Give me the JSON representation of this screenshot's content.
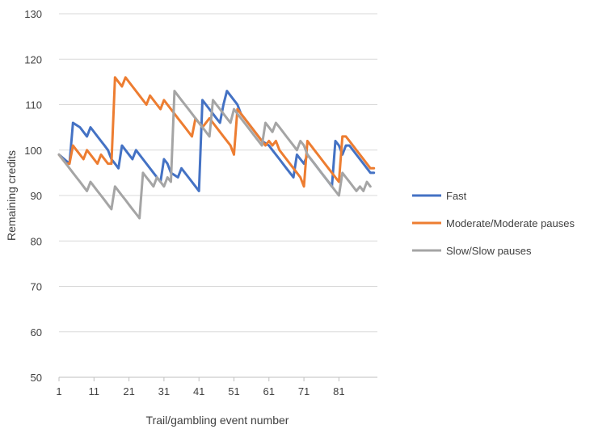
{
  "chart_data": {
    "type": "line",
    "xlabel": "Trail/gambling event number",
    "ylabel": "Remaining credits",
    "ylim": [
      50,
      130
    ],
    "yticks": [
      50,
      60,
      70,
      80,
      90,
      100,
      110,
      120,
      130
    ],
    "xlim": [
      1,
      92
    ],
    "xticks": [
      1,
      11,
      21,
      31,
      41,
      51,
      61,
      71,
      81
    ],
    "grid": "horizontal",
    "legend_position": "right",
    "series": [
      {
        "name": "Fast",
        "color": "#4472C4",
        "points": [
          [
            1,
            99
          ],
          [
            4,
            97
          ],
          [
            5,
            106
          ],
          [
            7,
            105
          ],
          [
            8,
            104
          ],
          [
            9,
            103
          ],
          [
            10,
            105
          ],
          [
            12,
            103
          ],
          [
            14,
            101
          ],
          [
            15,
            100
          ],
          [
            16,
            98
          ],
          [
            17,
            97
          ],
          [
            18,
            96
          ],
          [
            19,
            101
          ],
          [
            21,
            99
          ],
          [
            22,
            98
          ],
          [
            23,
            100
          ],
          [
            25,
            98
          ],
          [
            27,
            96
          ],
          [
            28,
            95
          ],
          [
            29,
            94
          ],
          [
            30,
            93
          ],
          [
            31,
            98
          ],
          [
            32,
            97
          ],
          [
            33,
            95
          ],
          [
            35,
            94
          ],
          [
            36,
            96
          ],
          [
            38,
            94
          ],
          [
            40,
            92
          ],
          [
            41,
            91
          ],
          [
            42,
            111
          ],
          [
            43,
            110
          ],
          [
            45,
            108
          ],
          [
            46,
            107
          ],
          [
            47,
            106
          ],
          [
            48,
            110
          ],
          [
            49,
            113
          ],
          [
            51,
            111
          ],
          [
            52,
            110
          ],
          [
            53,
            108
          ],
          [
            55,
            106
          ],
          [
            57,
            104
          ],
          [
            59,
            102
          ],
          [
            61,
            101
          ],
          [
            62,
            100
          ],
          [
            64,
            98
          ],
          [
            66,
            96
          ],
          [
            67,
            95
          ],
          [
            68,
            94
          ],
          [
            69,
            99
          ],
          [
            70,
            98
          ],
          [
            71,
            97
          ],
          [
            72,
            99
          ],
          [
            74,
            97
          ],
          [
            76,
            95
          ],
          [
            78,
            93
          ],
          [
            79,
            92
          ],
          [
            80,
            102
          ],
          [
            81,
            101
          ],
          [
            82,
            99
          ],
          [
            83,
            101
          ],
          [
            84,
            101
          ],
          [
            86,
            99
          ],
          [
            88,
            97
          ],
          [
            90,
            95
          ],
          [
            91,
            95
          ]
        ]
      },
      {
        "name": "Moderate/Moderate pauses",
        "color": "#ED7D31",
        "points": [
          [
            1,
            99
          ],
          [
            3,
            97
          ],
          [
            4,
            97
          ],
          [
            5,
            101
          ],
          [
            6,
            100
          ],
          [
            7,
            99
          ],
          [
            8,
            98
          ],
          [
            9,
            100
          ],
          [
            10,
            99
          ],
          [
            11,
            98
          ],
          [
            12,
            97
          ],
          [
            13,
            99
          ],
          [
            14,
            98
          ],
          [
            15,
            97
          ],
          [
            16,
            97
          ],
          [
            17,
            116
          ],
          [
            18,
            115
          ],
          [
            19,
            114
          ],
          [
            20,
            116
          ],
          [
            22,
            114
          ],
          [
            24,
            112
          ],
          [
            26,
            110
          ],
          [
            27,
            112
          ],
          [
            29,
            110
          ],
          [
            30,
            109
          ],
          [
            31,
            111
          ],
          [
            33,
            109
          ],
          [
            35,
            107
          ],
          [
            37,
            105
          ],
          [
            39,
            103
          ],
          [
            40,
            107
          ],
          [
            42,
            105
          ],
          [
            44,
            107
          ],
          [
            45,
            106
          ],
          [
            46,
            105
          ],
          [
            48,
            103
          ],
          [
            50,
            101
          ],
          [
            51,
            99
          ],
          [
            52,
            109
          ],
          [
            54,
            107
          ],
          [
            56,
            105
          ],
          [
            58,
            103
          ],
          [
            60,
            101
          ],
          [
            61,
            102
          ],
          [
            62,
            101
          ],
          [
            63,
            102
          ],
          [
            64,
            100
          ],
          [
            66,
            98
          ],
          [
            68,
            96
          ],
          [
            70,
            94
          ],
          [
            71,
            92
          ],
          [
            72,
            102
          ],
          [
            74,
            100
          ],
          [
            76,
            98
          ],
          [
            78,
            96
          ],
          [
            80,
            94
          ],
          [
            81,
            93
          ],
          [
            82,
            103
          ],
          [
            83,
            103
          ],
          [
            84,
            102
          ],
          [
            86,
            100
          ],
          [
            88,
            98
          ],
          [
            90,
            96
          ],
          [
            91,
            96
          ]
        ]
      },
      {
        "name": "Slow/Slow pauses",
        "color": "#A5A5A5",
        "points": [
          [
            1,
            99
          ],
          [
            2,
            98
          ],
          [
            3,
            97
          ],
          [
            4,
            96
          ],
          [
            5,
            95
          ],
          [
            6,
            94
          ],
          [
            7,
            93
          ],
          [
            8,
            92
          ],
          [
            9,
            91
          ],
          [
            10,
            93
          ],
          [
            11,
            92
          ],
          [
            12,
            91
          ],
          [
            13,
            90
          ],
          [
            14,
            89
          ],
          [
            15,
            88
          ],
          [
            16,
            87
          ],
          [
            17,
            92
          ],
          [
            18,
            91
          ],
          [
            19,
            90
          ],
          [
            20,
            89
          ],
          [
            21,
            88
          ],
          [
            22,
            87
          ],
          [
            23,
            86
          ],
          [
            24,
            85
          ],
          [
            25,
            95
          ],
          [
            26,
            94
          ],
          [
            27,
            93
          ],
          [
            28,
            92
          ],
          [
            29,
            94
          ],
          [
            30,
            93
          ],
          [
            31,
            92
          ],
          [
            32,
            94
          ],
          [
            33,
            93
          ],
          [
            34,
            113
          ],
          [
            35,
            112
          ],
          [
            36,
            111
          ],
          [
            38,
            109
          ],
          [
            40,
            107
          ],
          [
            42,
            105
          ],
          [
            44,
            103
          ],
          [
            45,
            111
          ],
          [
            46,
            110
          ],
          [
            47,
            109
          ],
          [
            48,
            108
          ],
          [
            49,
            107
          ],
          [
            50,
            106
          ],
          [
            51,
            109
          ],
          [
            53,
            107
          ],
          [
            55,
            105
          ],
          [
            57,
            103
          ],
          [
            59,
            101
          ],
          [
            60,
            106
          ],
          [
            61,
            105
          ],
          [
            62,
            104
          ],
          [
            63,
            106
          ],
          [
            64,
            105
          ],
          [
            66,
            103
          ],
          [
            68,
            101
          ],
          [
            69,
            100
          ],
          [
            70,
            102
          ],
          [
            71,
            101
          ],
          [
            72,
            99
          ],
          [
            74,
            97
          ],
          [
            76,
            95
          ],
          [
            78,
            93
          ],
          [
            80,
            91
          ],
          [
            81,
            90
          ],
          [
            82,
            95
          ],
          [
            83,
            94
          ],
          [
            84,
            93
          ],
          [
            86,
            91
          ],
          [
            87,
            92
          ],
          [
            88,
            91
          ],
          [
            89,
            93
          ],
          [
            90,
            92
          ]
        ]
      }
    ]
  }
}
